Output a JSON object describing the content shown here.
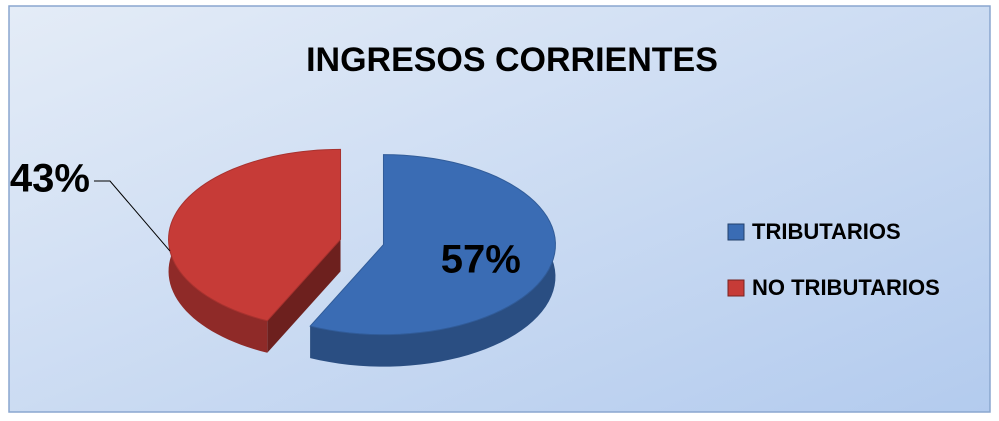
{
  "chart_data": {
    "type": "pie",
    "title": "INGRESOS CORRIENTES",
    "categories": [
      "TRIBUTARIOS",
      "NO TRIBUTARIOS"
    ],
    "values": [
      57,
      43
    ],
    "value_labels": [
      "57%",
      "43%"
    ],
    "colors": [
      "#3a6cb4",
      "#c63b37"
    ],
    "legend": "right"
  }
}
